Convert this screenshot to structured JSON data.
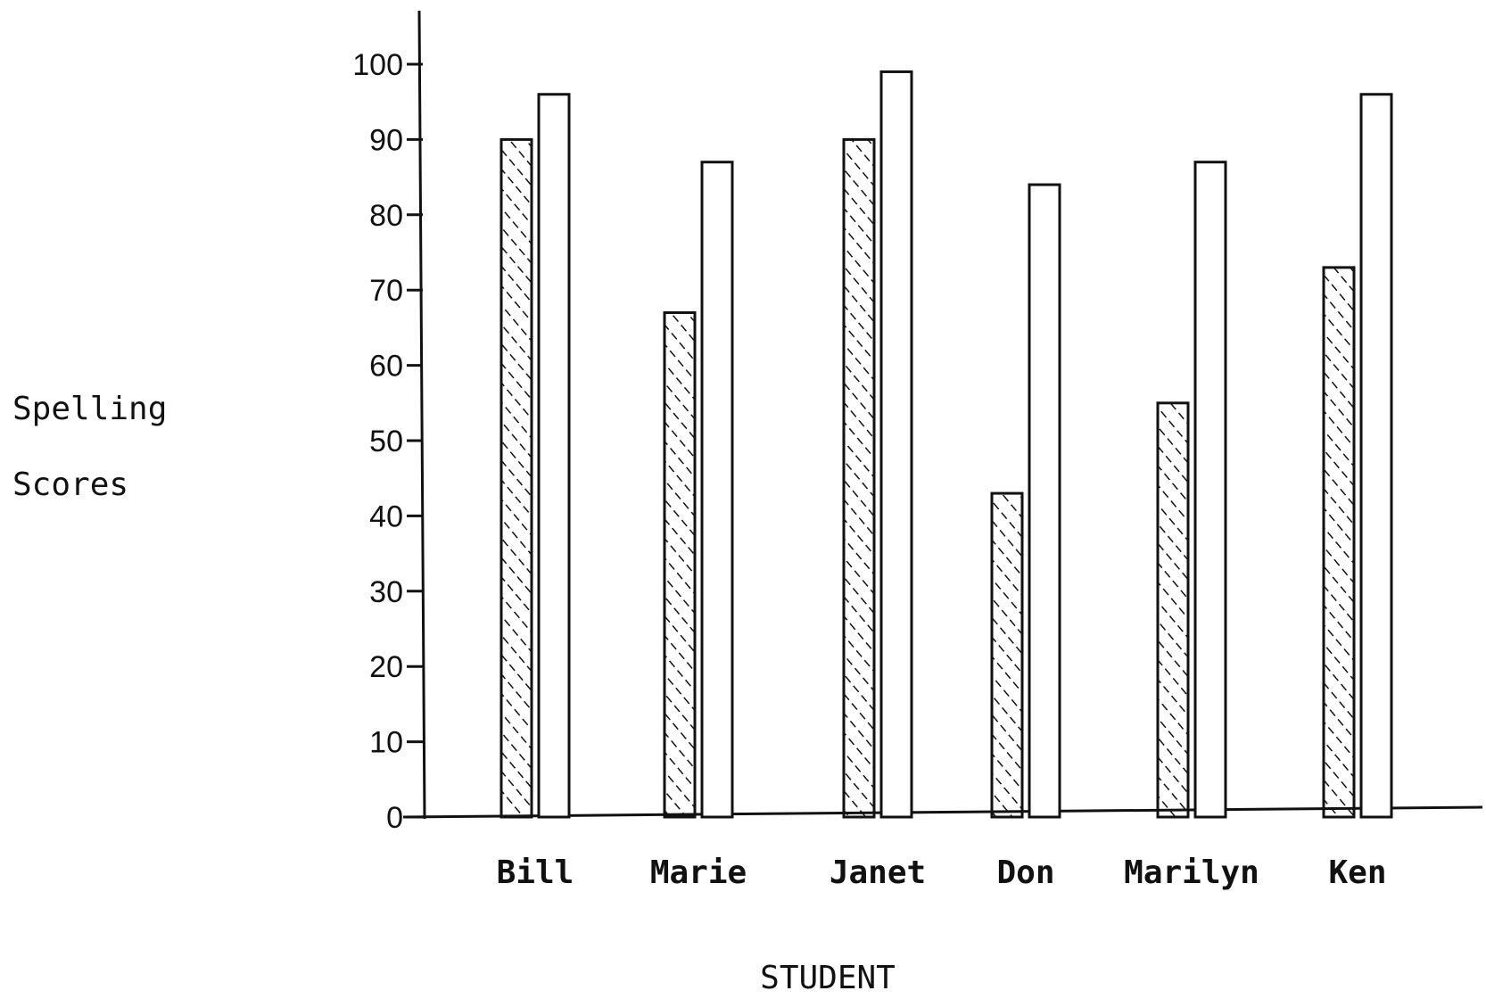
{
  "chart_data": {
    "type": "bar",
    "categories": [
      "Bill",
      "Marie",
      "Janet",
      "Don",
      "Marilyn",
      "Ken"
    ],
    "series": [
      {
        "pattern": "hatched",
        "values": [
          90,
          67,
          90,
          43,
          55,
          73
        ]
      },
      {
        "pattern": "plain",
        "values": [
          96,
          87,
          99,
          84,
          87,
          96
        ]
      }
    ],
    "yticks": [
      0,
      10,
      20,
      30,
      40,
      50,
      60,
      70,
      80,
      90,
      100
    ],
    "ylim": [
      0,
      100
    ],
    "ylabel_lines": [
      "Spelling",
      "Scores"
    ],
    "xlabel": "STUDENT",
    "grid": false,
    "legend": "none",
    "colors": {
      "ink": "#111111",
      "background": "#ffffff"
    }
  }
}
